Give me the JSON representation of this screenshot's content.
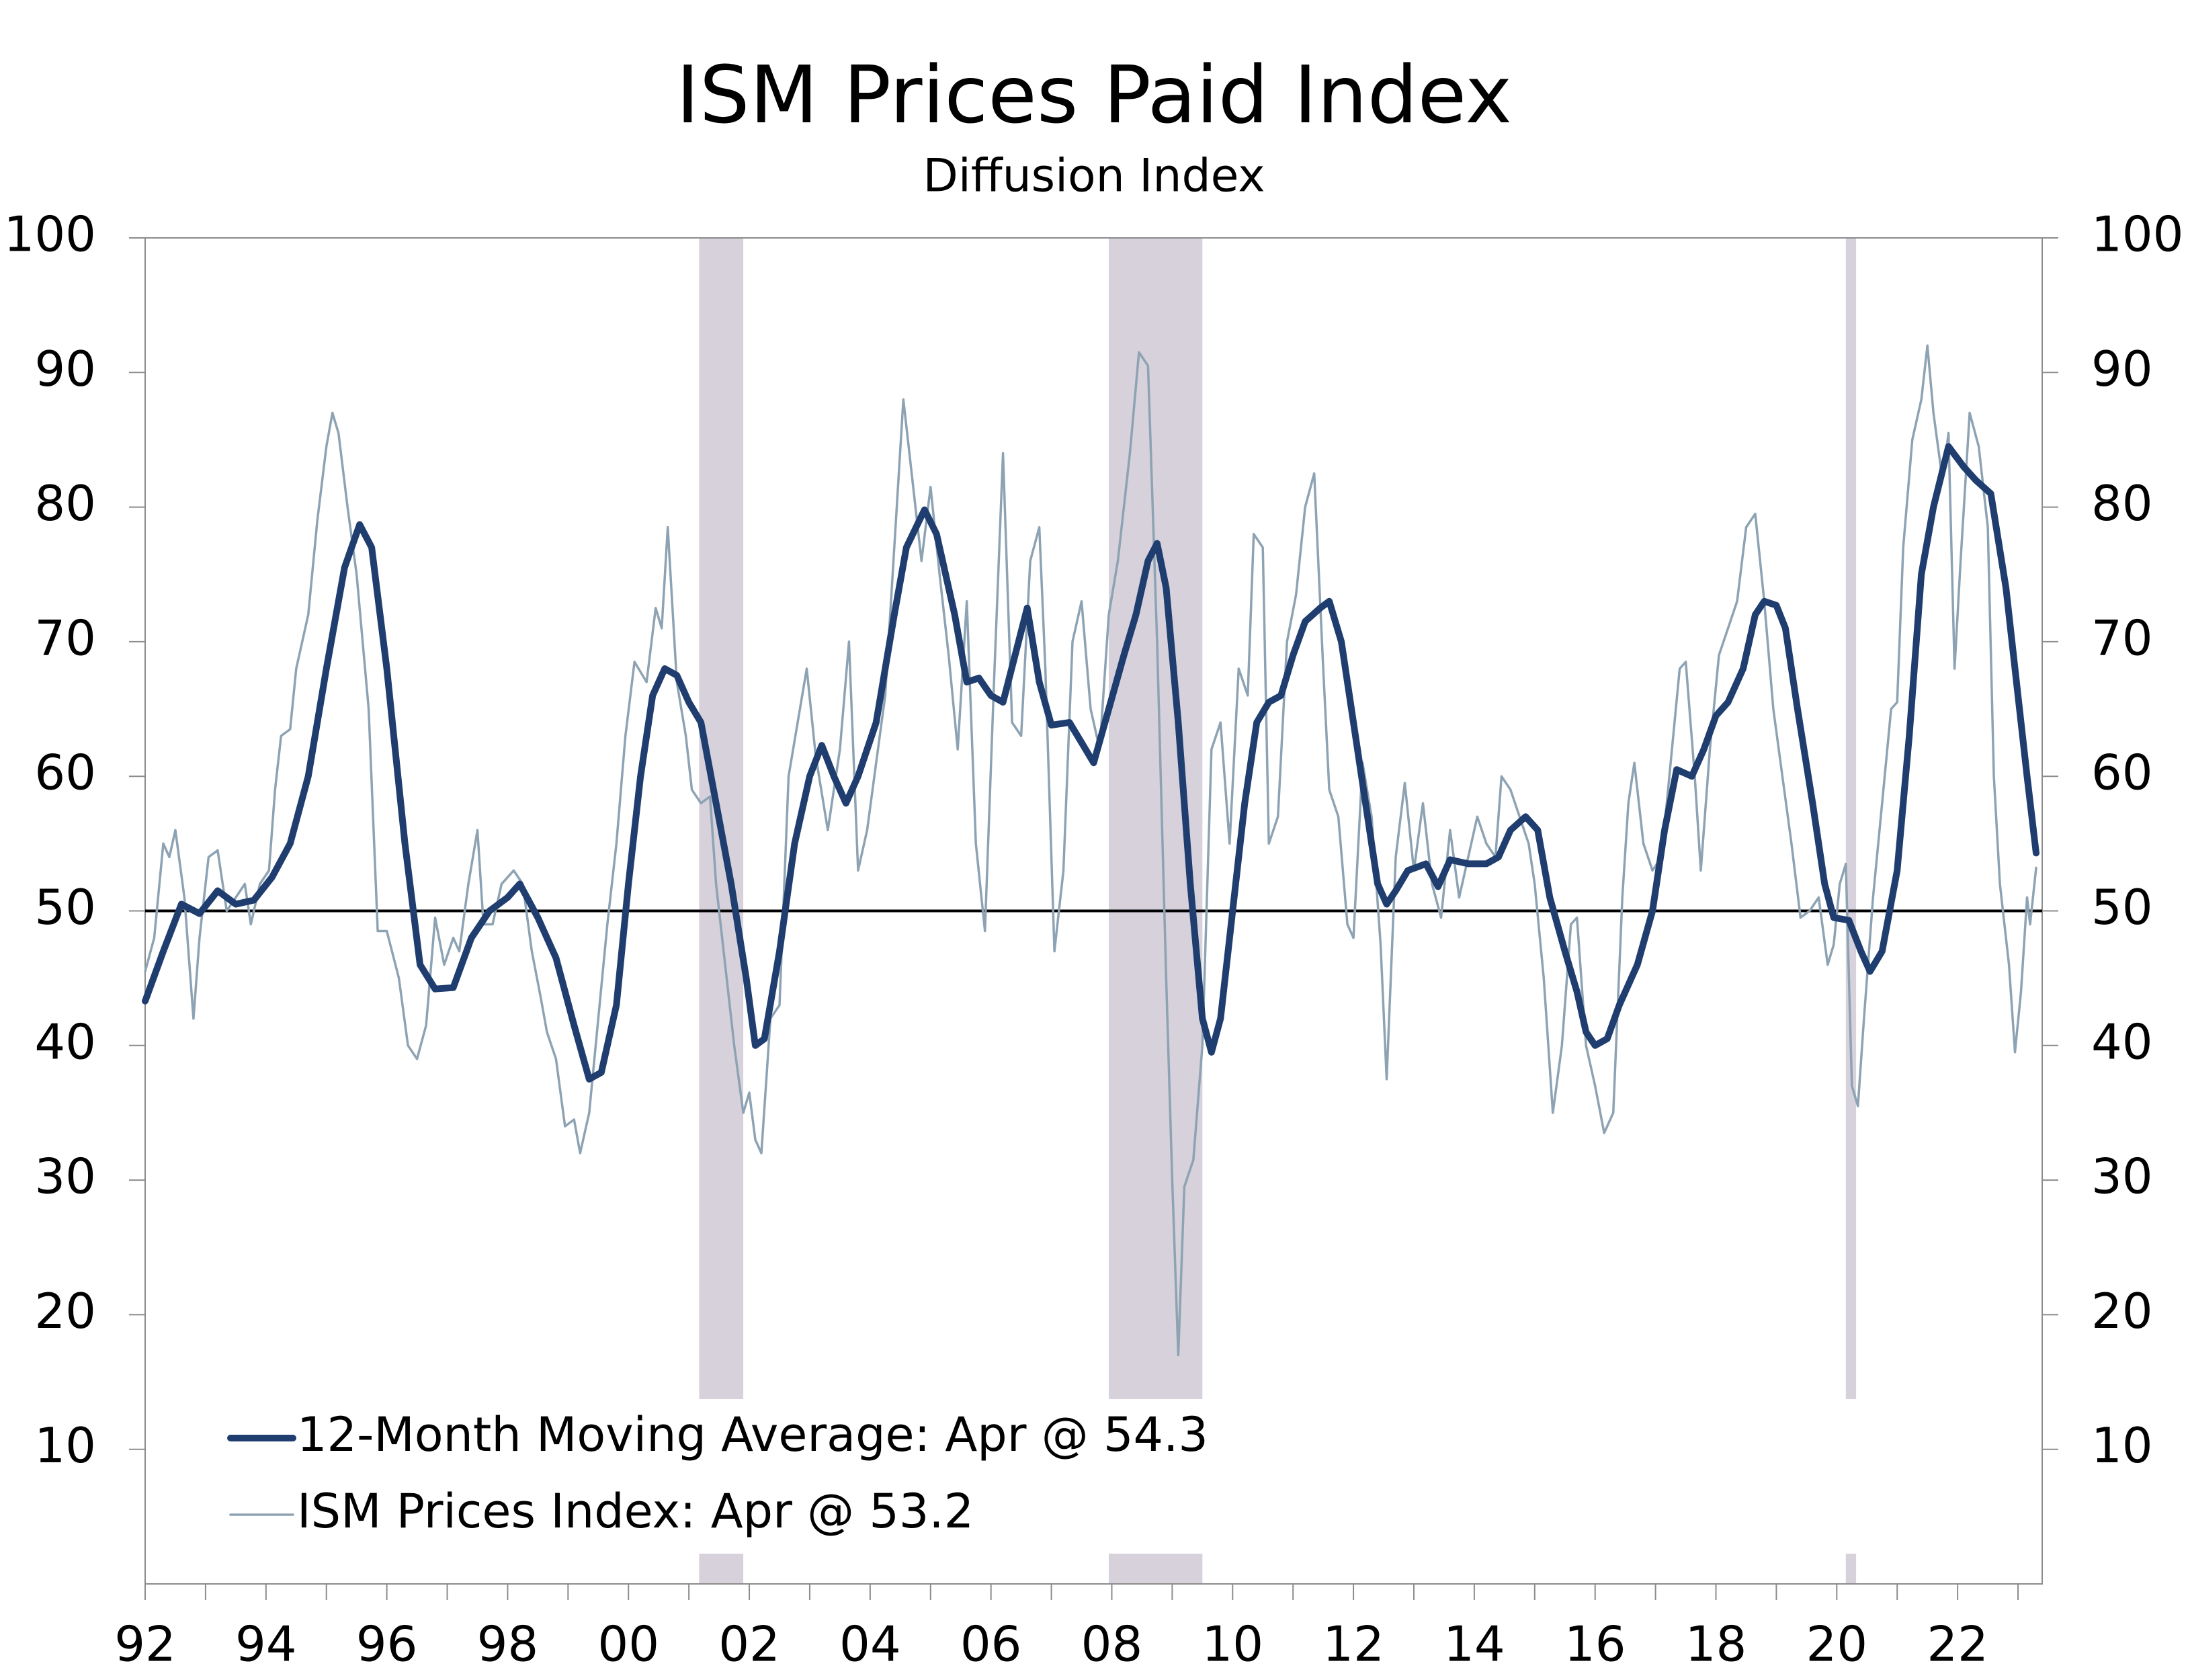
{
  "chart_data": {
    "type": "line",
    "title": "ISM Prices Paid Index",
    "subtitle": "Diffusion Index",
    "xlim": [
      1992,
      2023.4
    ],
    "xticks": [
      {
        "value": 1992,
        "label": "92"
      },
      {
        "value": 1994,
        "label": "94"
      },
      {
        "value": 1996,
        "label": "96"
      },
      {
        "value": 1998,
        "label": "98"
      },
      {
        "value": 2000,
        "label": "00"
      },
      {
        "value": 2002,
        "label": "02"
      },
      {
        "value": 2004,
        "label": "04"
      },
      {
        "value": 2006,
        "label": "06"
      },
      {
        "value": 2008,
        "label": "08"
      },
      {
        "value": 2010,
        "label": "10"
      },
      {
        "value": 2012,
        "label": "12"
      },
      {
        "value": 2014,
        "label": "14"
      },
      {
        "value": 2016,
        "label": "16"
      },
      {
        "value": 2018,
        "label": "18"
      },
      {
        "value": 2020,
        "label": "20"
      },
      {
        "value": 2022,
        "label": "22"
      }
    ],
    "xminor": [
      1993,
      1995,
      1997,
      1999,
      2001,
      2003,
      2005,
      2007,
      2009,
      2011,
      2013,
      2015,
      2017,
      2019,
      2021,
      2023
    ],
    "ylim": [
      0,
      100
    ],
    "yticks": [
      10,
      20,
      30,
      40,
      50,
      60,
      70,
      80,
      90,
      100
    ],
    "reference_line": 50,
    "recession_color": "#d6d1db",
    "recessions": [
      [
        2001.17,
        2001.9
      ],
      [
        2007.95,
        2009.5
      ],
      [
        2020.15,
        2020.32
      ]
    ],
    "series": [
      {
        "name": "12-Month Moving Average: Apr @ 54.3",
        "color": "#1f3d6e",
        "x": [
          1992.0,
          1992.3,
          1992.6,
          1992.9,
          1993.2,
          1993.5,
          1993.8,
          1994.1,
          1994.4,
          1994.7,
          1995.0,
          1995.3,
          1995.55,
          1995.75,
          1996.0,
          1996.3,
          1996.55,
          1996.8,
          1997.1,
          1997.4,
          1997.7,
          1998.0,
          1998.2,
          1998.5,
          1998.8,
          1999.1,
          1999.35,
          1999.55,
          1999.8,
          2000.0,
          2000.2,
          2000.4,
          2000.6,
          2000.8,
          2001.0,
          2001.2,
          2001.45,
          2001.7,
          2001.95,
          2002.1,
          2002.25,
          2002.5,
          2002.75,
          2003.0,
          2003.2,
          2003.4,
          2003.6,
          2003.8,
          2004.1,
          2004.4,
          2004.6,
          2004.9,
          2005.1,
          2005.4,
          2005.6,
          2005.8,
          2006.0,
          2006.2,
          2006.4,
          2006.6,
          2006.8,
          2007.0,
          2007.3,
          2007.5,
          2007.7,
          2007.95,
          2008.2,
          2008.4,
          2008.6,
          2008.75,
          2008.9,
          2009.1,
          2009.3,
          2009.5,
          2009.65,
          2009.8,
          2010.0,
          2010.2,
          2010.4,
          2010.6,
          2010.8,
          2011.0,
          2011.2,
          2011.45,
          2011.6,
          2011.8,
          2012.0,
          2012.2,
          2012.4,
          2012.55,
          2012.7,
          2012.9,
          2013.2,
          2013.4,
          2013.6,
          2013.9,
          2014.2,
          2014.4,
          2014.6,
          2014.85,
          2015.05,
          2015.25,
          2015.5,
          2015.7,
          2015.85,
          2016.0,
          2016.2,
          2016.4,
          2016.7,
          2016.95,
          2017.15,
          2017.35,
          2017.6,
          2017.8,
          2018.0,
          2018.2,
          2018.45,
          2018.65,
          2018.8,
          2019.0,
          2019.15,
          2019.35,
          2019.6,
          2019.8,
          2019.95,
          2020.2,
          2020.4,
          2020.55,
          2020.75,
          2021.0,
          2021.2,
          2021.4,
          2021.6,
          2021.85,
          2022.1,
          2022.3,
          2022.55,
          2022.8,
          2023.0,
          2023.15,
          2023.3
        ],
        "values": [
          43.3,
          47,
          50.5,
          49.8,
          51.5,
          50.5,
          50.8,
          52.5,
          55,
          60,
          68,
          75.5,
          78.7,
          77,
          68,
          55,
          46,
          44.2,
          44.3,
          48,
          50,
          51,
          52,
          49.5,
          46.5,
          41.5,
          37.5,
          38,
          43,
          52,
          60,
          66,
          68,
          67.5,
          65.5,
          64,
          58,
          52,
          45,
          40,
          40.5,
          47,
          55,
          60,
          62.3,
          60,
          58,
          60,
          64,
          72,
          77,
          79.8,
          78,
          72,
          67,
          67.3,
          66,
          65.5,
          69,
          72.5,
          67,
          63.8,
          64,
          62.5,
          61,
          65,
          69,
          72,
          76,
          77.3,
          74,
          64,
          52,
          42,
          39.5,
          42,
          50,
          58,
          64,
          65.5,
          66,
          69,
          71.5,
          72.5,
          73,
          70,
          64,
          58,
          52,
          50.5,
          51.5,
          53,
          53.5,
          51.8,
          53.8,
          53.5,
          53.5,
          54,
          56,
          57,
          56,
          51,
          47,
          44,
          41,
          40,
          40.5,
          43,
          46,
          50,
          56,
          60.5,
          60,
          62,
          64.5,
          65.5,
          68,
          72,
          73,
          72.7,
          71,
          65,
          58,
          52,
          49.5,
          49.3,
          47,
          45.5,
          47,
          53,
          63,
          75,
          80,
          84.5,
          83,
          82,
          81,
          74,
          66,
          60,
          54.3
        ]
      },
      {
        "name": "ISM Prices Index: Apr @ 53.2",
        "color": "#8da3b3",
        "x": [
          1992.0,
          1992.15,
          1992.3,
          1992.4,
          1992.5,
          1992.65,
          1992.8,
          1992.9,
          1993.05,
          1993.2,
          1993.35,
          1993.5,
          1993.65,
          1993.75,
          1993.9,
          1994.05,
          1994.15,
          1994.25,
          1994.4,
          1994.5,
          1994.7,
          1994.85,
          1995.0,
          1995.1,
          1995.2,
          1995.35,
          1995.5,
          1995.7,
          1995.85,
          1996.0,
          1996.2,
          1996.35,
          1996.5,
          1996.65,
          1996.8,
          1996.95,
          1997.1,
          1997.2,
          1997.35,
          1997.5,
          1997.6,
          1997.75,
          1997.9,
          1998.1,
          1998.25,
          1998.4,
          1998.55,
          1998.65,
          1998.8,
          1998.95,
          1999.1,
          1999.2,
          1999.35,
          1999.5,
          1999.65,
          1999.8,
          1999.95,
          2000.1,
          2000.3,
          2000.45,
          2000.55,
          2000.65,
          2000.8,
          2000.95,
          2001.05,
          2001.2,
          2001.35,
          2001.45,
          2001.6,
          2001.75,
          2001.9,
          2002.0,
          2002.1,
          2002.2,
          2002.35,
          2002.5,
          2002.65,
          2002.8,
          2002.95,
          2003.1,
          2003.3,
          2003.5,
          2003.65,
          2003.8,
          2003.95,
          2004.1,
          2004.25,
          2004.4,
          2004.55,
          2004.7,
          2004.85,
          2005.0,
          2005.15,
          2005.3,
          2005.45,
          2005.6,
          2005.75,
          2005.9,
          2006.05,
          2006.2,
          2006.35,
          2006.5,
          2006.65,
          2006.8,
          2006.9,
          2007.05,
          2007.2,
          2007.35,
          2007.5,
          2007.65,
          2007.8,
          2007.95,
          2008.1,
          2008.3,
          2008.45,
          2008.6,
          2008.75,
          2008.9,
          2009.0,
          2009.1,
          2009.2,
          2009.35,
          2009.5,
          2009.65,
          2009.8,
          2009.95,
          2010.1,
          2010.25,
          2010.35,
          2010.5,
          2010.6,
          2010.75,
          2010.9,
          2011.05,
          2011.2,
          2011.35,
          2011.5,
          2011.6,
          2011.75,
          2011.9,
          2012.0,
          2012.15,
          2012.3,
          2012.45,
          2012.55,
          2012.7,
          2012.85,
          2013.0,
          2013.15,
          2013.3,
          2013.45,
          2013.6,
          2013.75,
          2013.9,
          2014.05,
          2014.2,
          2014.35,
          2014.45,
          2014.6,
          2014.75,
          2014.9,
          2015.0,
          2015.15,
          2015.3,
          2015.45,
          2015.6,
          2015.7,
          2015.85,
          2016.0,
          2016.15,
          2016.3,
          2016.45,
          2016.55,
          2016.65,
          2016.8,
          2016.95,
          2017.1,
          2017.25,
          2017.4,
          2017.5,
          2017.65,
          2017.75,
          2017.9,
          2018.05,
          2018.2,
          2018.35,
          2018.5,
          2018.65,
          2018.8,
          2018.95,
          2019.1,
          2019.25,
          2019.4,
          2019.55,
          2019.7,
          2019.85,
          2019.95,
          2020.05,
          2020.15,
          2020.25,
          2020.35,
          2020.45,
          2020.6,
          2020.75,
          2020.9,
          2021.0,
          2021.1,
          2021.25,
          2021.4,
          2021.5,
          2021.6,
          2021.75,
          2021.85,
          2021.95,
          2022.05,
          2022.2,
          2022.35,
          2022.5,
          2022.6,
          2022.7,
          2022.85,
          2022.95,
          2023.05,
          2023.15,
          2023.2,
          2023.3
        ],
        "values": [
          45.5,
          48,
          55,
          54,
          56,
          51,
          42,
          48,
          54,
          54.5,
          50,
          51,
          52,
          49,
          52,
          53,
          59,
          63,
          63.5,
          68,
          72,
          79,
          84.5,
          87,
          85.5,
          80,
          75,
          65,
          48.5,
          48.5,
          45,
          40,
          39,
          41.5,
          49.5,
          46,
          48,
          47,
          52,
          56,
          49,
          49,
          52,
          53,
          52,
          47,
          43.5,
          41,
          39,
          34,
          34.5,
          32,
          35,
          42,
          49,
          55,
          63,
          68.5,
          67,
          72.5,
          71,
          78.5,
          67,
          63,
          59,
          58,
          58.5,
          52,
          46,
          40,
          35,
          36.5,
          33,
          32,
          42,
          43,
          60,
          64,
          68,
          61.5,
          56,
          62,
          70,
          53,
          56,
          61,
          66,
          77,
          88,
          82,
          76,
          81.5,
          75,
          69,
          62,
          73,
          55,
          48.5,
          67,
          84,
          64,
          63,
          76,
          78.5,
          68,
          47,
          53,
          70,
          73,
          65,
          62,
          72,
          76,
          84,
          91.5,
          90.5,
          70,
          45,
          30,
          17,
          29.5,
          31.5,
          40,
          62,
          64,
          55,
          68,
          66,
          78,
          77,
          55,
          57,
          70,
          73.5,
          80,
          82.5,
          68,
          59,
          57,
          49,
          48,
          61,
          57,
          47.5,
          37.5,
          54,
          59.5,
          53,
          58,
          52,
          49.5,
          56,
          51,
          54,
          57,
          55,
          54,
          60,
          59,
          57,
          55,
          52,
          45,
          35,
          40,
          49,
          49.5,
          40,
          37,
          33.5,
          35,
          51,
          58,
          61,
          55,
          53,
          54,
          61,
          68,
          68.5,
          60,
          53,
          62,
          69,
          71,
          73,
          78.5,
          79.5,
          73,
          65,
          60,
          55,
          49.5,
          50,
          51,
          46,
          47.5,
          52,
          53.5,
          37,
          35.5,
          42,
          51,
          58,
          65,
          65.5,
          77,
          85,
          88,
          92,
          87,
          82,
          85.5,
          68,
          76,
          87,
          84.5,
          78.5,
          60,
          52,
          46,
          39.5,
          44,
          51,
          49,
          53.2
        ]
      }
    ]
  }
}
